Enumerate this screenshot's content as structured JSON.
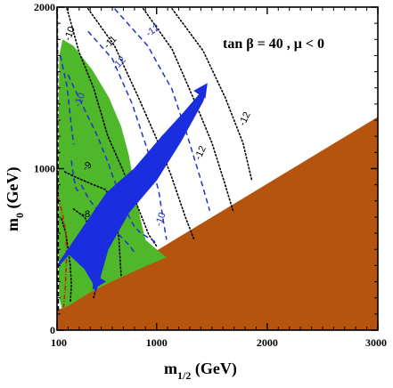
{
  "chart_data": {
    "type": "contour",
    "annotation": {
      "text": "tan β = 40 ,  μ < 0"
    },
    "xlabel": {
      "main": "m",
      "sub": "1/2",
      "unit": " (GeV)"
    },
    "ylabel": {
      "main": "m",
      "sub": "0",
      "unit": " (GeV)"
    },
    "xlim": [
      100,
      3000
    ],
    "ylim": [
      0,
      2000
    ],
    "x_ticks": [
      100,
      1000,
      2000,
      3000
    ],
    "y_ticks": [
      0,
      1000,
      2000
    ],
    "x_tick_labels": [
      "100",
      "1000",
      "2000",
      "3000"
    ],
    "y_tick_labels": [
      "0",
      "1000",
      "2000"
    ],
    "colors": {
      "excluded_region": "#b5540f",
      "green_region": "#4fb72a",
      "blue_band": "#1a2ee0",
      "black_contours": "#000000",
      "blue_contours": "#2233cc",
      "red_line": "#cc2200"
    },
    "regions": [
      {
        "role": "excluded",
        "color": "#b5540f",
        "points": [
          [
            100,
            120
          ],
          [
            3000,
            1320
          ],
          [
            3000,
            0
          ],
          [
            100,
            0
          ]
        ]
      },
      {
        "role": "green",
        "color": "#4fb72a",
        "points": [
          [
            120,
            1700
          ],
          [
            150,
            1800
          ],
          [
            250,
            1760
          ],
          [
            420,
            1610
          ],
          [
            570,
            1440
          ],
          [
            680,
            1260
          ],
          [
            750,
            1080
          ],
          [
            800,
            890
          ],
          [
            850,
            700
          ],
          [
            900,
            560
          ],
          [
            1000,
            500
          ],
          [
            1090,
            450
          ],
          [
            880,
            390
          ],
          [
            560,
            290
          ],
          [
            390,
            230
          ],
          [
            250,
            170
          ],
          [
            145,
            130
          ],
          [
            120,
            200
          ],
          [
            110,
            500
          ],
          [
            112,
            1000
          ],
          [
            115,
            1400
          ]
        ]
      }
    ],
    "blue_band": {
      "color": "#1a2ee0",
      "outline": [
        [
          120,
          420
        ],
        [
          300,
          600
        ],
        [
          550,
          850
        ],
        [
          800,
          1000
        ],
        [
          1050,
          1200
        ],
        [
          1250,
          1350
        ],
        [
          1450,
          1510
        ],
        [
          1420,
          1420
        ],
        [
          1220,
          1170
        ],
        [
          1000,
          930
        ],
        [
          750,
          730
        ],
        [
          560,
          500
        ],
        [
          470,
          280
        ],
        [
          450,
          240
        ],
        [
          420,
          300
        ],
        [
          350,
          380
        ],
        [
          210,
          470
        ],
        [
          115,
          400
        ]
      ],
      "arrows": [
        {
          "from": [
            1350,
            1420
          ],
          "to": [
            1460,
            1530
          ]
        },
        {
          "from": [
            550,
            390
          ],
          "to": [
            420,
            250
          ]
        }
      ]
    },
    "black_contours": [
      {
        "label": "-10",
        "points": [
          [
            190,
            1990
          ],
          [
            300,
            1720
          ],
          [
            430,
            1500
          ],
          [
            560,
            1200
          ],
          [
            690,
            1000
          ],
          [
            820,
            780
          ],
          [
            930,
            590
          ],
          [
            1000,
            520
          ]
        ]
      },
      {
        "label": "-11",
        "points": [
          [
            380,
            1990
          ],
          [
            620,
            1760
          ],
          [
            830,
            1450
          ],
          [
            990,
            1200
          ],
          [
            1130,
            960
          ],
          [
            1260,
            700
          ],
          [
            1340,
            560
          ]
        ]
      },
      {
        "label": "",
        "points": [
          [
            880,
            1990
          ],
          [
            1140,
            1740
          ],
          [
            1330,
            1440
          ],
          [
            1500,
            1160
          ],
          [
            1620,
            900
          ],
          [
            1690,
            740
          ]
        ]
      },
      {
        "label": "-12",
        "points": [
          [
            1140,
            1990
          ],
          [
            1420,
            1730
          ],
          [
            1620,
            1440
          ],
          [
            1780,
            1160
          ],
          [
            1860,
            930
          ]
        ]
      },
      {
        "label": "-9",
        "points": [
          [
            170,
            980
          ],
          [
            260,
            950
          ],
          [
            430,
            900
          ],
          [
            540,
            870
          ],
          [
            620,
            770
          ],
          [
            660,
            560
          ],
          [
            680,
            330
          ]
        ]
      },
      {
        "label": "",
        "points": [
          [
            250,
            750
          ],
          [
            350,
            700
          ],
          [
            450,
            550
          ],
          [
            480,
            420
          ],
          [
            470,
            300
          ],
          [
            430,
            200
          ]
        ]
      },
      {
        "label": "-8",
        "points": [
          [
            140,
            690
          ],
          [
            180,
            600
          ],
          [
            220,
            400
          ],
          [
            230,
            280
          ],
          [
            220,
            170
          ]
        ]
      }
    ],
    "blue_contours": [
      {
        "label": "-12",
        "points": [
          [
            620,
            1990
          ],
          [
            920,
            1760
          ],
          [
            1140,
            1490
          ],
          [
            1280,
            1200
          ],
          [
            1400,
            930
          ],
          [
            1480,
            740
          ]
        ]
      },
      {
        "label": "-12",
        "points": [
          [
            380,
            1850
          ],
          [
            600,
            1680
          ],
          [
            780,
            1400
          ],
          [
            920,
            1110
          ],
          [
            1020,
            860
          ],
          [
            1060,
            680
          ],
          [
            1090,
            560
          ]
        ]
      },
      {
        "label": "-10",
        "points": [
          [
            200,
            1580
          ],
          [
            310,
            1420
          ],
          [
            460,
            1210
          ],
          [
            560,
            1040
          ],
          [
            600,
            960
          ],
          [
            700,
            780
          ],
          [
            760,
            690
          ],
          [
            800,
            640
          ],
          [
            860,
            600
          ],
          [
            980,
            550
          ],
          [
            1000,
            520
          ]
        ]
      },
      {
        "label": "",
        "points": [
          [
            130,
            1700
          ],
          [
            190,
            1510
          ],
          [
            220,
            1320
          ],
          [
            250,
            1150
          ]
        ]
      },
      {
        "label": "",
        "points": [
          [
            230,
            1050
          ],
          [
            250,
            950
          ],
          [
            270,
            880
          ],
          [
            290,
            860
          ]
        ]
      },
      {
        "label": "-10",
        "points": [
          [
            320,
            900
          ],
          [
            380,
            820
          ],
          [
            530,
            680
          ],
          [
            620,
            620
          ],
          [
            760,
            520
          ],
          [
            800,
            480
          ]
        ]
      }
    ],
    "red_line": {
      "points": [
        [
          100,
          930
        ],
        [
          110,
          820
        ],
        [
          150,
          720
        ],
        [
          180,
          600
        ],
        [
          185,
          450
        ],
        [
          175,
          270
        ],
        [
          160,
          140
        ]
      ]
    },
    "dashed_vertical": {
      "points": [
        [
          100,
          2000
        ],
        [
          103,
          1500
        ],
        [
          106,
          1000
        ],
        [
          108,
          500
        ],
        [
          110,
          120
        ]
      ]
    },
    "contour_labels": [
      {
        "text": "-10",
        "x": 240,
        "y": 1830,
        "rot": -70,
        "color": "#000000"
      },
      {
        "text": "-11",
        "x": 600,
        "y": 1770,
        "rot": -45,
        "color": "#000000"
      },
      {
        "text": "-12",
        "x": 980,
        "y": 1840,
        "rot": -35,
        "color": "#2233cc"
      },
      {
        "text": "-12",
        "x": 680,
        "y": 1640,
        "rot": -45,
        "color": "#2233cc"
      },
      {
        "text": "-10",
        "x": 330,
        "y": 1420,
        "rot": -70,
        "color": "#2233cc"
      },
      {
        "text": "-9",
        "x": 390,
        "y": 1000,
        "rot": -40,
        "color": "#000000"
      },
      {
        "text": "-8",
        "x": 360,
        "y": 700,
        "rot": 0,
        "color": "#000000"
      },
      {
        "text": "-12",
        "x": 1820,
        "y": 1300,
        "rot": -65,
        "color": "#000000"
      },
      {
        "text": "-12",
        "x": 1420,
        "y": 1090,
        "rot": -65,
        "color": "#000000"
      },
      {
        "text": "-10",
        "x": 1060,
        "y": 680,
        "rot": -70,
        "color": "#2233cc"
      }
    ]
  }
}
